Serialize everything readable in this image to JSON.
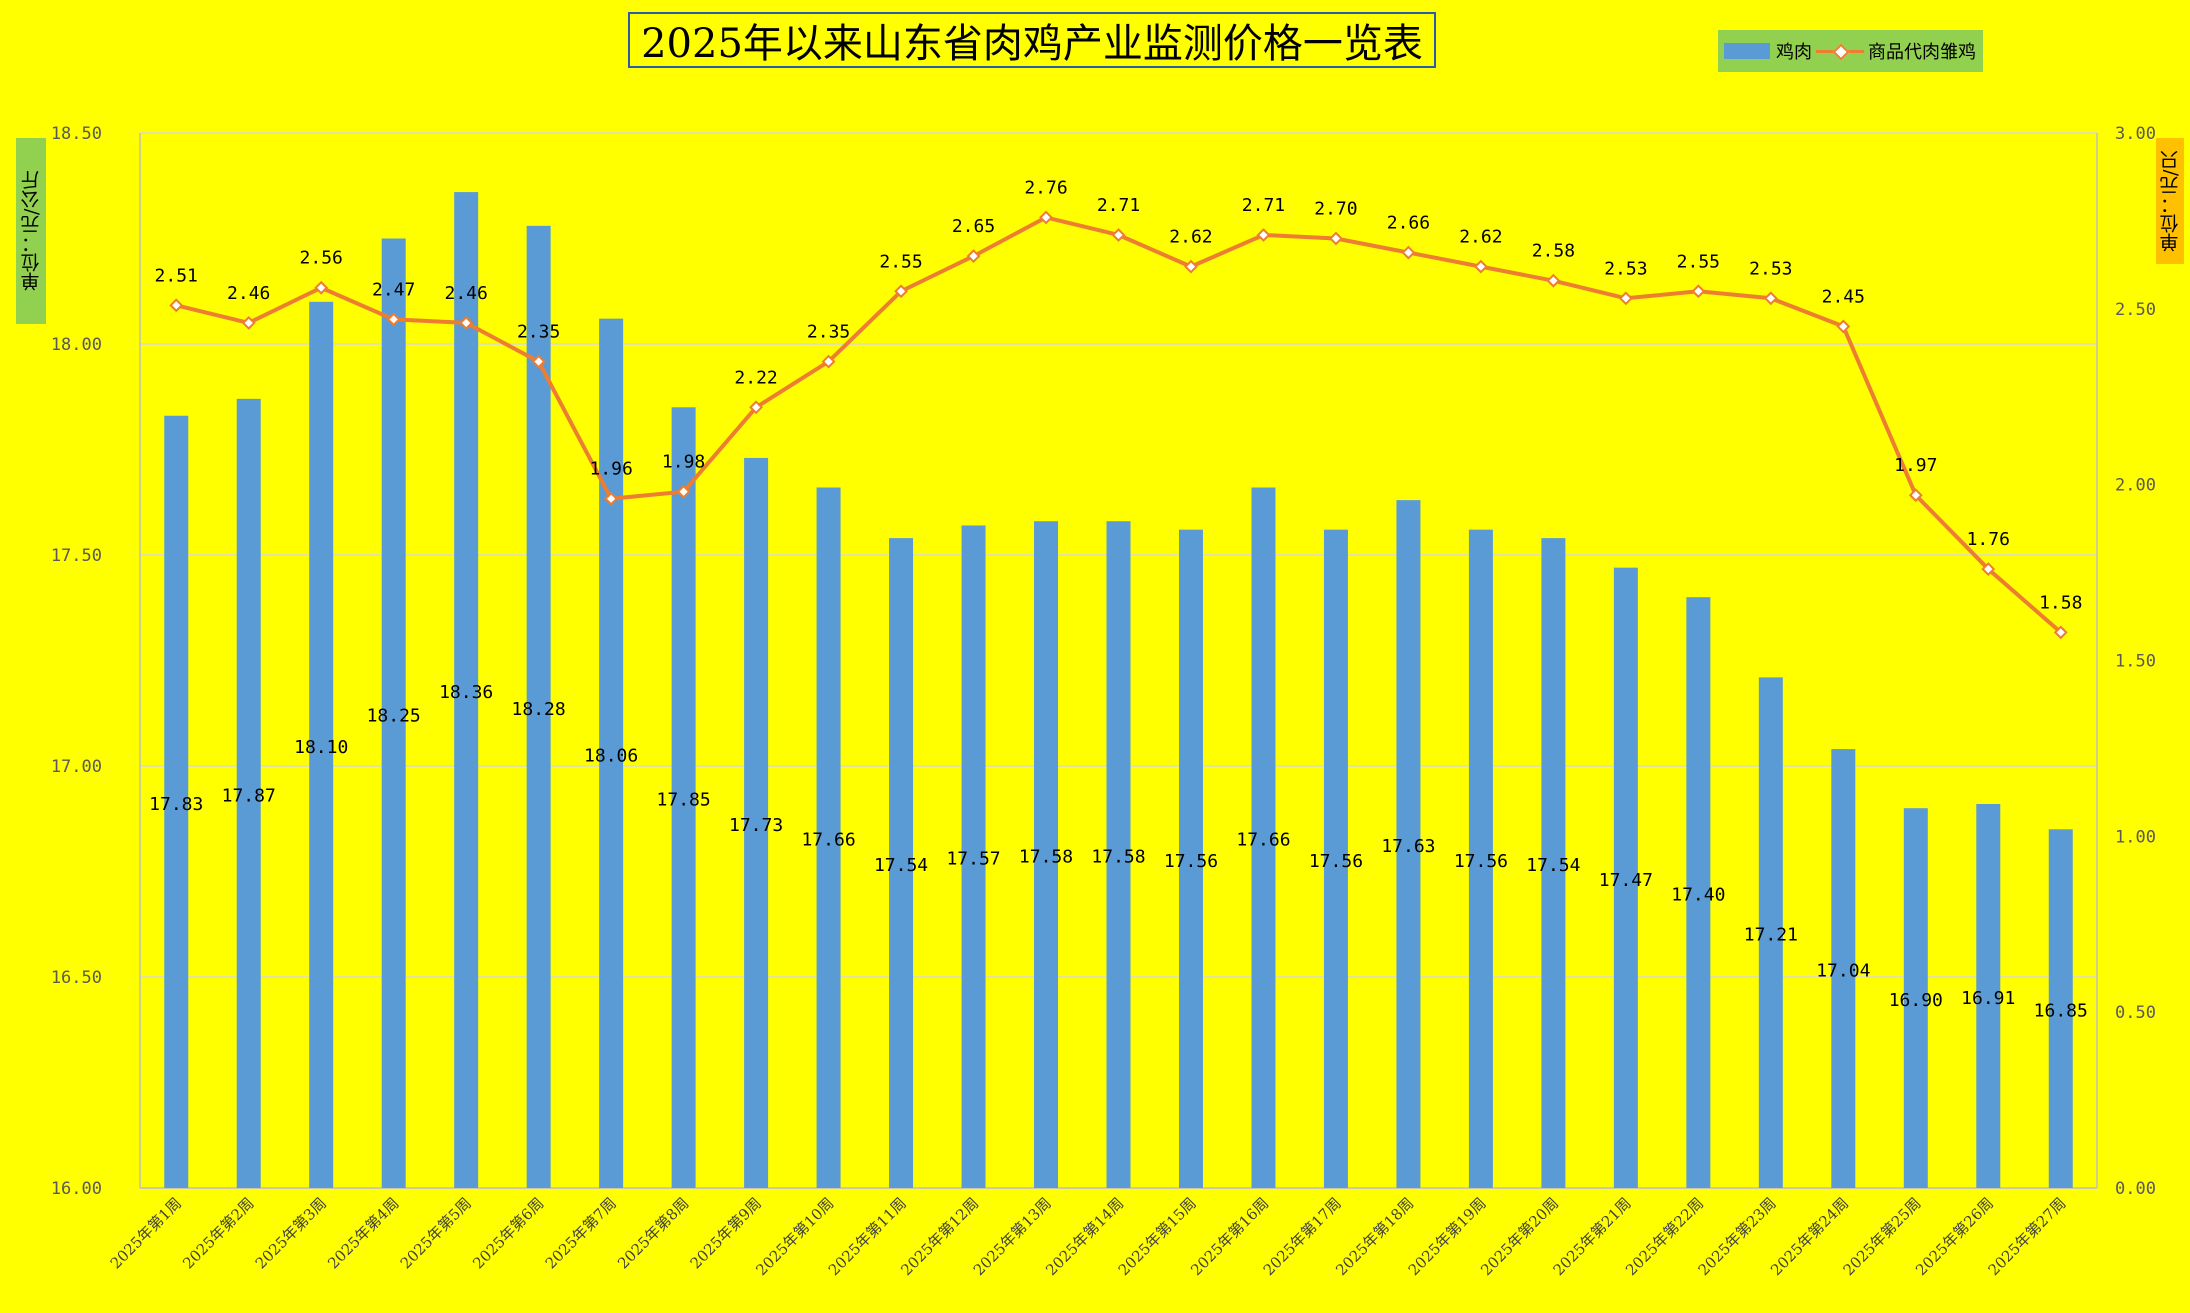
{
  "chart_data": {
    "type": "bar+line",
    "title": "2025年以来山东省肉鸡产业监测价格一览表",
    "categories": [
      "2025年第1周",
      "2025年第2周",
      "2025年第3周",
      "2025年第4周",
      "2025年第5周",
      "2025年第6周",
      "2025年第7周",
      "2025年第8周",
      "2025年第9周",
      "2025年第10周",
      "2025年第11周",
      "2025年第12周",
      "2025年第13周",
      "2025年第14周",
      "2025年第15周",
      "2025年第16周",
      "2025年第17周",
      "2025年第18周",
      "2025年第19周",
      "2025年第20周",
      "2025年第21周",
      "2025年第22周",
      "2025年第23周",
      "2025年第24周",
      "2025年第25周",
      "2025年第26周",
      "2025年第27周"
    ],
    "series": [
      {
        "name": "鸡肉",
        "type": "bar",
        "axis": "left",
        "color": "#5b9bd5",
        "values": [
          17.83,
          17.87,
          18.1,
          18.25,
          18.36,
          18.28,
          18.06,
          17.85,
          17.73,
          17.66,
          17.54,
          17.57,
          17.58,
          17.58,
          17.56,
          17.66,
          17.56,
          17.63,
          17.56,
          17.54,
          17.47,
          17.4,
          17.21,
          17.04,
          16.9,
          16.91,
          16.85
        ]
      },
      {
        "name": "商品代肉雏鸡",
        "type": "line",
        "axis": "right",
        "color": "#ed7d31",
        "values": [
          2.51,
          2.46,
          2.56,
          2.47,
          2.46,
          2.35,
          1.96,
          1.98,
          2.22,
          2.35,
          2.55,
          2.65,
          2.76,
          2.71,
          2.62,
          2.71,
          2.7,
          2.66,
          2.62,
          2.58,
          2.53,
          2.55,
          2.53,
          2.45,
          1.97,
          1.76,
          1.58
        ]
      }
    ],
    "y_left": {
      "label": "单位：元/公斤",
      "min": 16.0,
      "max": 18.5,
      "ticks": [
        "16.00",
        "16.50",
        "17.00",
        "17.50",
        "18.00",
        "18.50"
      ]
    },
    "y_right": {
      "label": "单位：元/只",
      "min": 0.0,
      "max": 3.0,
      "ticks": [
        "0.00",
        "0.50",
        "1.00",
        "1.50",
        "2.00",
        "2.50",
        "3.00"
      ]
    },
    "grid": true,
    "legend_position": "top-right",
    "background": "#ffff00"
  }
}
